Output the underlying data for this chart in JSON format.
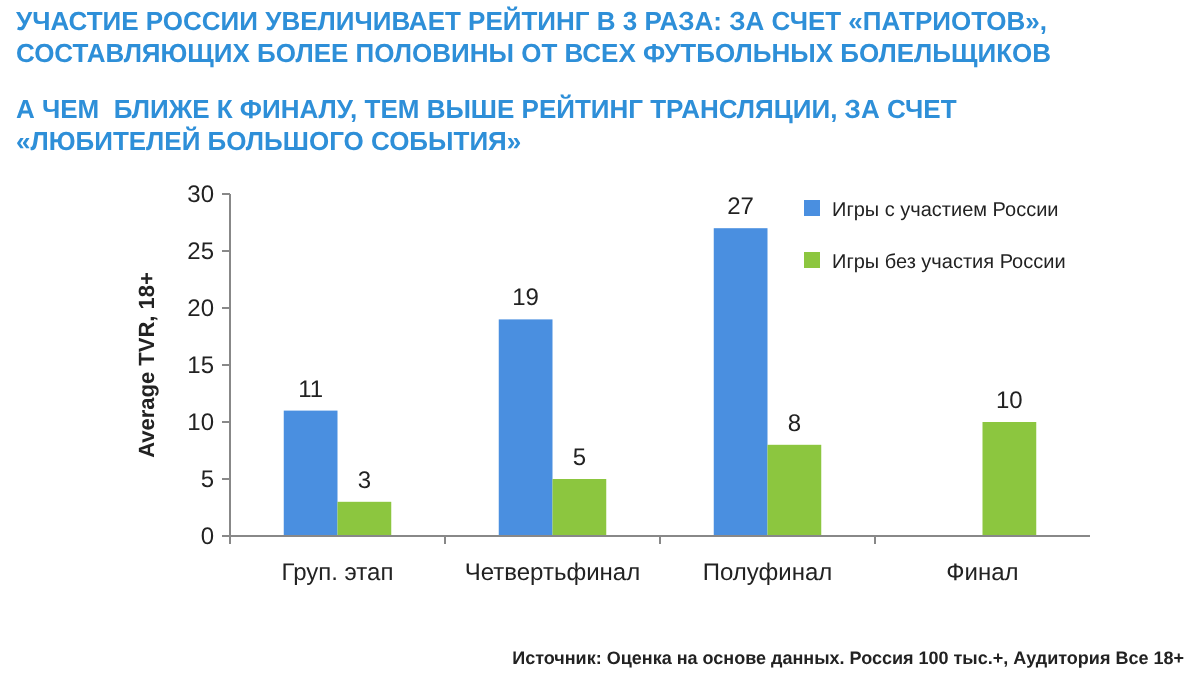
{
  "chart_data": {
    "type": "bar",
    "title": "УЧАСТИЕ РОССИИ УВЕЛИЧИВАЕТ РЕЙТИНГ В 3 РАЗА: ЗА СЧЕТ «ПАТРИОТОВ», СОСТАВЛЯЮЩИХ БОЛЕЕ ПОЛОВИНЫ ОТ ВСЕХ ФУТБОЛЬНЫХ БОЛЕЛЬЩИКОВ",
    "subtitle": "А ЧЕМ  БЛИЖЕ К ФИНАЛУ, ТЕМ ВЫШЕ РЕЙТИНГ ТРАНСЛЯЦИИ, ЗА СЧЕТ «ЛЮБИТЕЛЕЙ БОЛЬШОГО СОБЫТИЯ»",
    "ylabel": "Average TVR, 18+",
    "categories": [
      "Груп. этап",
      "Четвертьфинал",
      "Полуфинал",
      "Финал"
    ],
    "series": [
      {
        "name": "Игры с участием России",
        "color": "#4a8fe0",
        "values": [
          11,
          19,
          27,
          null
        ]
      },
      {
        "name": "Игры без участия России",
        "color": "#8cc63f",
        "values": [
          3,
          5,
          8,
          10
        ]
      }
    ],
    "ylim": [
      0,
      30
    ],
    "yticks": [
      0,
      5,
      10,
      15,
      20,
      25,
      30
    ],
    "data_labels": true,
    "legend": "top right",
    "annotations": [
      "Источник: Оценка на основе данных. Россия 100 тыс.+, Аудитория Все 18+"
    ]
  }
}
